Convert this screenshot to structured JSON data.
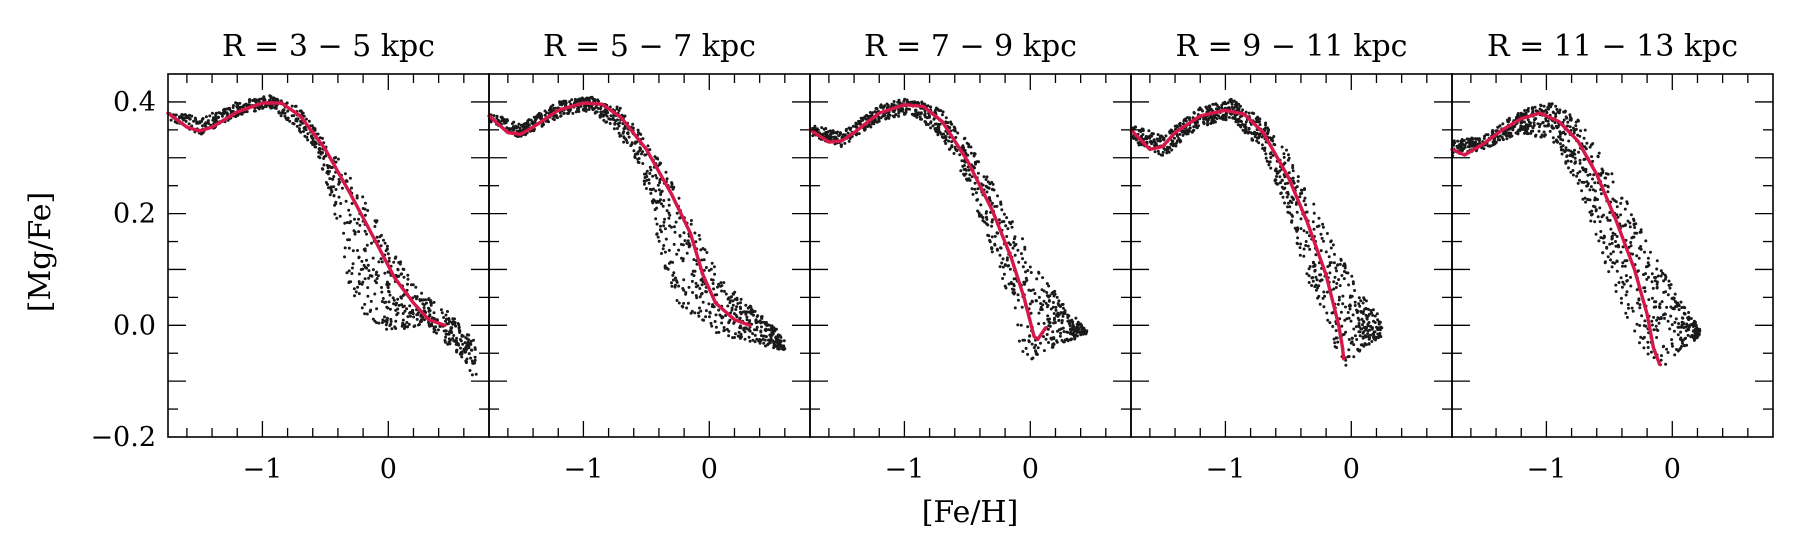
{
  "chart_data": {
    "type": "scatter",
    "xlabel": "[Fe/H]",
    "ylabel": "[Mg/Fe]",
    "xlim": [
      -1.75,
      0.8
    ],
    "ylim": [
      -0.2,
      0.45
    ],
    "x_ticks": [
      -1,
      0
    ],
    "y_ticks": [
      -0.2,
      0.0,
      0.2,
      0.4
    ],
    "x_tick_labels": [
      "−1",
      "0"
    ],
    "y_tick_labels": [
      "−0.2",
      "0.0",
      "0.2",
      "0.4"
    ],
    "colors": {
      "points": "#1a1a1a",
      "curve": "#d6174a"
    },
    "panels": [
      {
        "title": "R = 3 − 5 kpc",
        "curve": [
          [
            -1.75,
            0.38
          ],
          [
            -1.6,
            0.355
          ],
          [
            -1.5,
            0.348
          ],
          [
            -1.4,
            0.355
          ],
          [
            -1.2,
            0.382
          ],
          [
            -1.0,
            0.398
          ],
          [
            -0.85,
            0.398
          ],
          [
            -0.7,
            0.375
          ],
          [
            -0.5,
            0.315
          ],
          [
            -0.3,
            0.235
          ],
          [
            -0.1,
            0.15
          ],
          [
            0.05,
            0.085
          ],
          [
            0.2,
            0.04
          ],
          [
            0.32,
            0.01
          ],
          [
            0.45,
            0.0
          ]
        ],
        "scatter_envelope": {
          "upper": [
            [
              -1.75,
              0.39
            ],
            [
              -1.5,
              0.37
            ],
            [
              -1.2,
              0.4
            ],
            [
              -0.95,
              0.412
            ],
            [
              -0.7,
              0.39
            ],
            [
              -0.5,
              0.33
            ],
            [
              -0.25,
              0.255
            ],
            [
              0.0,
              0.15
            ],
            [
              0.25,
              0.06
            ],
            [
              0.5,
              0.02
            ],
            [
              0.7,
              -0.03
            ],
            [
              0.75,
              -0.09
            ]
          ],
          "lower": [
            [
              -1.75,
              0.37
            ],
            [
              -1.5,
              0.34
            ],
            [
              -1.2,
              0.375
            ],
            [
              -0.95,
              0.39
            ],
            [
              -0.75,
              0.36
            ],
            [
              -0.55,
              0.3
            ],
            [
              -0.4,
              0.18
            ],
            [
              -0.3,
              0.06
            ],
            [
              -0.2,
              0.02
            ],
            [
              0.0,
              -0.01
            ],
            [
              0.3,
              -0.0
            ],
            [
              0.55,
              -0.05
            ],
            [
              0.7,
              -0.1
            ]
          ]
        }
      },
      {
        "title": "R = 5 − 7 kpc",
        "curve": [
          [
            -1.75,
            0.375
          ],
          [
            -1.6,
            0.345
          ],
          [
            -1.5,
            0.342
          ],
          [
            -1.4,
            0.355
          ],
          [
            -1.2,
            0.385
          ],
          [
            -1.0,
            0.398
          ],
          [
            -0.85,
            0.396
          ],
          [
            -0.7,
            0.372
          ],
          [
            -0.5,
            0.315
          ],
          [
            -0.3,
            0.235
          ],
          [
            -0.15,
            0.165
          ],
          [
            -0.05,
            0.09
          ],
          [
            0.05,
            0.04
          ],
          [
            0.2,
            0.01
          ],
          [
            0.32,
            0.0
          ]
        ],
        "scatter_envelope": {
          "upper": [
            [
              -1.75,
              0.385
            ],
            [
              -1.5,
              0.36
            ],
            [
              -1.2,
              0.4
            ],
            [
              -0.95,
              0.41
            ],
            [
              -0.7,
              0.39
            ],
            [
              -0.5,
              0.33
            ],
            [
              -0.3,
              0.26
            ],
            [
              -0.1,
              0.17
            ],
            [
              0.1,
              0.08
            ],
            [
              0.35,
              0.03
            ],
            [
              0.55,
              -0.01
            ],
            [
              0.65,
              -0.04
            ]
          ],
          "lower": [
            [
              -1.75,
              0.365
            ],
            [
              -1.5,
              0.335
            ],
            [
              -1.2,
              0.37
            ],
            [
              -0.95,
              0.385
            ],
            [
              -0.75,
              0.35
            ],
            [
              -0.55,
              0.28
            ],
            [
              -0.45,
              0.19
            ],
            [
              -0.35,
              0.1
            ],
            [
              -0.25,
              0.04
            ],
            [
              -0.1,
              0.01
            ],
            [
              0.1,
              -0.02
            ],
            [
              0.3,
              -0.03
            ],
            [
              0.6,
              -0.045
            ]
          ]
        }
      },
      {
        "title": "R = 7 − 9 kpc",
        "curve": [
          [
            -1.75,
            0.35
          ],
          [
            -1.6,
            0.328
          ],
          [
            -1.5,
            0.33
          ],
          [
            -1.4,
            0.345
          ],
          [
            -1.2,
            0.38
          ],
          [
            -1.0,
            0.395
          ],
          [
            -0.85,
            0.392
          ],
          [
            -0.7,
            0.365
          ],
          [
            -0.5,
            0.295
          ],
          [
            -0.3,
            0.205
          ],
          [
            -0.15,
            0.12
          ],
          [
            -0.05,
            0.05
          ],
          [
            0.03,
            -0.02
          ],
          [
            0.06,
            -0.025
          ],
          [
            0.12,
            -0.005
          ]
        ],
        "scatter_envelope": {
          "upper": [
            [
              -1.75,
              0.36
            ],
            [
              -1.5,
              0.345
            ],
            [
              -1.2,
              0.395
            ],
            [
              -0.95,
              0.408
            ],
            [
              -0.7,
              0.385
            ],
            [
              -0.5,
              0.33
            ],
            [
              -0.3,
              0.255
            ],
            [
              -0.1,
              0.17
            ],
            [
              0.1,
              0.09
            ],
            [
              0.3,
              0.03
            ],
            [
              0.45,
              -0.01
            ]
          ],
          "lower": [
            [
              -1.75,
              0.34
            ],
            [
              -1.5,
              0.32
            ],
            [
              -1.2,
              0.365
            ],
            [
              -0.95,
              0.38
            ],
            [
              -0.7,
              0.335
            ],
            [
              -0.5,
              0.25
            ],
            [
              -0.3,
              0.13
            ],
            [
              -0.15,
              0.04
            ],
            [
              -0.08,
              -0.05
            ],
            [
              -0.05,
              -0.075
            ],
            [
              0.1,
              -0.05
            ],
            [
              0.3,
              -0.03
            ],
            [
              0.45,
              -0.015
            ]
          ]
        }
      },
      {
        "title": "R = 9 − 11 kpc",
        "curve": [
          [
            -1.75,
            0.35
          ],
          [
            -1.6,
            0.315
          ],
          [
            -1.5,
            0.32
          ],
          [
            -1.4,
            0.345
          ],
          [
            -1.2,
            0.375
          ],
          [
            -1.0,
            0.385
          ],
          [
            -0.85,
            0.378
          ],
          [
            -0.7,
            0.345
          ],
          [
            -0.5,
            0.265
          ],
          [
            -0.35,
            0.185
          ],
          [
            -0.2,
            0.09
          ],
          [
            -0.1,
            0.0
          ],
          [
            -0.07,
            -0.04
          ],
          [
            -0.06,
            -0.06
          ]
        ],
        "scatter_envelope": {
          "upper": [
            [
              -1.75,
              0.36
            ],
            [
              -1.5,
              0.34
            ],
            [
              -1.2,
              0.39
            ],
            [
              -0.95,
              0.405
            ],
            [
              -0.7,
              0.37
            ],
            [
              -0.5,
              0.31
            ],
            [
              -0.3,
              0.22
            ],
            [
              -0.1,
              0.13
            ],
            [
              0.1,
              0.05
            ],
            [
              0.25,
              0.01
            ],
            [
              0.3,
              -0.01
            ]
          ],
          "lower": [
            [
              -1.75,
              0.33
            ],
            [
              -1.5,
              0.3
            ],
            [
              -1.2,
              0.355
            ],
            [
              -0.95,
              0.37
            ],
            [
              -0.7,
              0.31
            ],
            [
              -0.5,
              0.2
            ],
            [
              -0.35,
              0.08
            ],
            [
              -0.2,
              0.0
            ],
            [
              -0.1,
              -0.06
            ],
            [
              -0.05,
              -0.075
            ],
            [
              0.1,
              -0.04
            ],
            [
              0.25,
              -0.02
            ]
          ]
        }
      },
      {
        "title": "R = 11 − 13 kpc",
        "curve": [
          [
            -1.75,
            0.315
          ],
          [
            -1.65,
            0.305
          ],
          [
            -1.5,
            0.325
          ],
          [
            -1.35,
            0.35
          ],
          [
            -1.2,
            0.37
          ],
          [
            -1.05,
            0.38
          ],
          [
            -0.9,
            0.365
          ],
          [
            -0.75,
            0.33
          ],
          [
            -0.6,
            0.27
          ],
          [
            -0.45,
            0.19
          ],
          [
            -0.3,
            0.1
          ],
          [
            -0.2,
            0.02
          ],
          [
            -0.15,
            -0.04
          ],
          [
            -0.1,
            -0.07
          ]
        ],
        "scatter_envelope": {
          "upper": [
            [
              -1.75,
              0.33
            ],
            [
              -1.5,
              0.34
            ],
            [
              -1.2,
              0.385
            ],
            [
              -0.95,
              0.4
            ],
            [
              -0.75,
              0.37
            ],
            [
              -0.55,
              0.3
            ],
            [
              -0.35,
              0.22
            ],
            [
              -0.15,
              0.13
            ],
            [
              0.05,
              0.05
            ],
            [
              0.2,
              0.0
            ],
            [
              0.25,
              -0.02
            ]
          ],
          "lower": [
            [
              -1.75,
              0.3
            ],
            [
              -1.5,
              0.315
            ],
            [
              -1.2,
              0.345
            ],
            [
              -0.95,
              0.33
            ],
            [
              -0.75,
              0.25
            ],
            [
              -0.6,
              0.15
            ],
            [
              -0.45,
              0.06
            ],
            [
              -0.3,
              -0.02
            ],
            [
              -0.15,
              -0.065
            ],
            [
              -0.08,
              -0.075
            ],
            [
              0.1,
              -0.04
            ],
            [
              0.22,
              -0.02
            ]
          ]
        }
      }
    ]
  }
}
